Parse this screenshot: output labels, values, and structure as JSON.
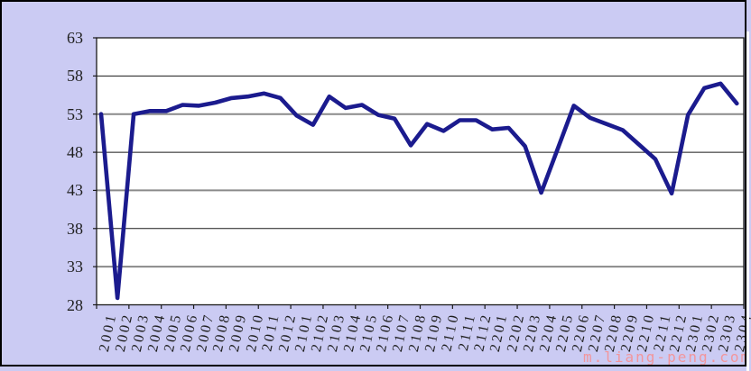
{
  "watermark": "m.liang-peng.com",
  "colors": {
    "background": "#cbcbf3",
    "plot_background": "#ffffff",
    "line": "#1b1b8e",
    "grid_black": "#1a1a1a",
    "grid_gray": "#8a8a8a",
    "axis_label": "#1f1f1f",
    "watermark": "#f2969c",
    "frame": "#000000"
  },
  "chart_data": {
    "type": "line",
    "title": "",
    "xlabel": "",
    "ylabel": "",
    "ylim": [
      28,
      63
    ],
    "yticks": [
      63,
      58,
      53,
      48,
      43,
      38,
      33,
      28
    ],
    "grid": true,
    "legend_position": "none",
    "xtick_rotation_deg": -78,
    "categories": [
      "2001",
      "2002",
      "2003",
      "2004",
      "2005",
      "2006",
      "2007",
      "2008",
      "2009",
      "2010",
      "2011",
      "2012",
      "2101",
      "2102",
      "2103",
      "2104",
      "2105",
      "2106",
      "2107",
      "2108",
      "2109",
      "2110",
      "2111",
      "2112",
      "2201",
      "2202",
      "2203",
      "2204",
      "2205",
      "2206",
      "2207",
      "2208",
      "2209",
      "2210",
      "2211",
      "2212",
      "2301",
      "2302",
      "2303",
      "2304"
    ],
    "series": [
      {
        "values": [
          53.0,
          28.9,
          53.0,
          53.4,
          53.4,
          54.2,
          54.1,
          54.5,
          55.1,
          55.3,
          55.7,
          55.1,
          52.8,
          51.6,
          55.3,
          53.8,
          54.2,
          52.9,
          52.4,
          48.9,
          51.7,
          50.8,
          52.2,
          52.2,
          51.0,
          51.2,
          48.8,
          42.7,
          48.4,
          54.1,
          52.5,
          51.7,
          50.9,
          49.0,
          47.1,
          42.6,
          52.9,
          56.4,
          57.0,
          54.4
        ]
      }
    ]
  }
}
